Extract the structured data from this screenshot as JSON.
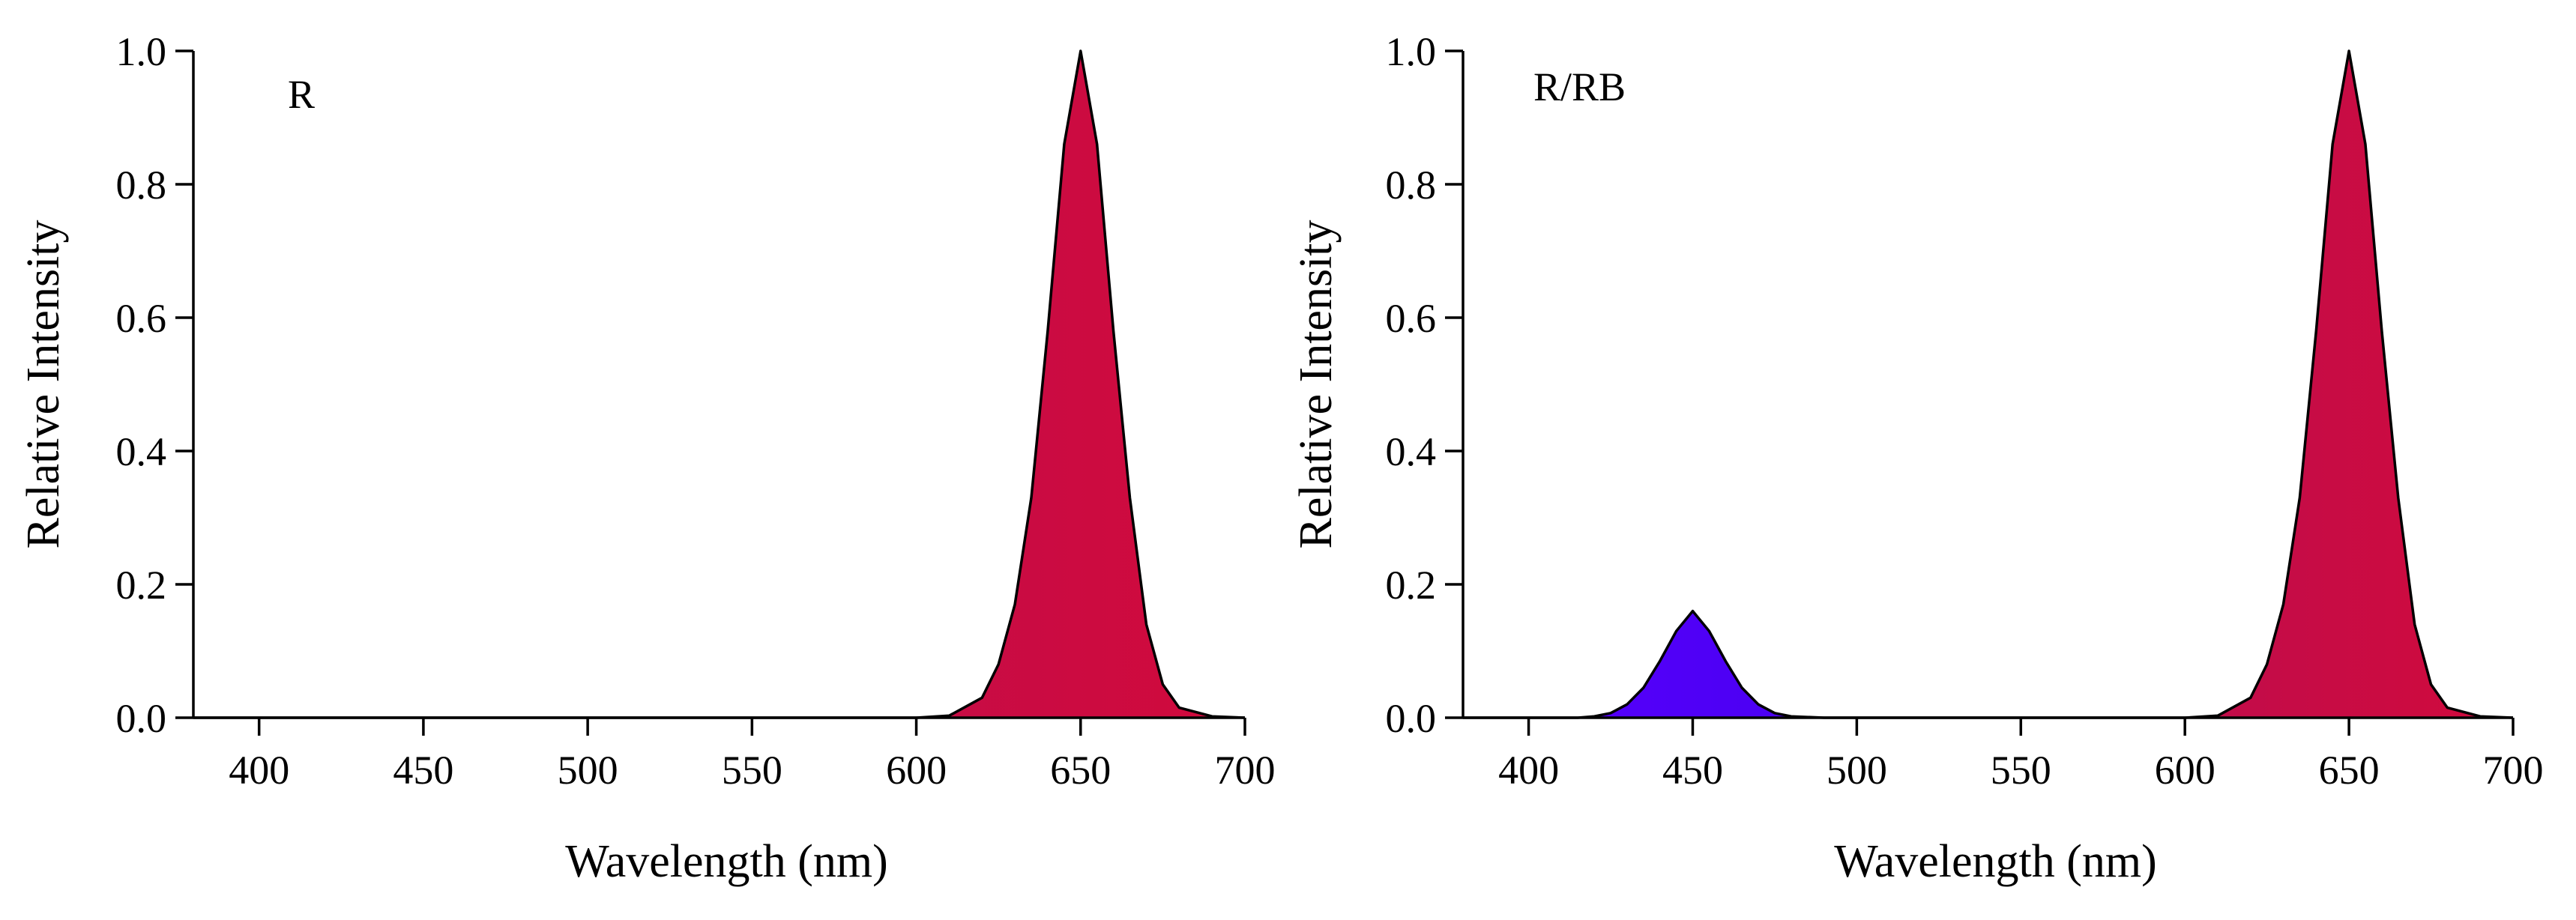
{
  "chart_data": [
    {
      "type": "area",
      "panel_label": "R",
      "xlabel": "Wavelength (nm)",
      "ylabel": "Relative Intensity",
      "xlim": [
        380,
        700
      ],
      "ylim": [
        0,
        1.0
      ],
      "xticks": [
        400,
        450,
        500,
        550,
        600,
        650,
        700
      ],
      "yticks": [
        0.0,
        0.2,
        0.4,
        0.6,
        0.8,
        1.0
      ],
      "xtick_labels": [
        "400",
        "450",
        "500",
        "550",
        "600",
        "650",
        "700"
      ],
      "ytick_labels": [
        "0.0",
        "0.2",
        "0.4",
        "0.6",
        "0.8",
        "1.0"
      ],
      "grid": false,
      "series": [
        {
          "x": [
            380,
            600,
            610,
            620,
            625,
            630,
            635,
            640,
            645,
            650,
            655,
            660,
            665,
            670,
            675,
            680,
            690,
            700
          ],
          "y": [
            0,
            0.0,
            0.003,
            0.03,
            0.08,
            0.17,
            0.33,
            0.58,
            0.86,
            1.0,
            0.86,
            0.58,
            0.33,
            0.14,
            0.05,
            0.015,
            0.002,
            0.0
          ],
          "color_start": "#b0105a",
          "color_end": "#d10a3c"
        }
      ]
    },
    {
      "type": "area",
      "panel_label": "R/RB",
      "xlabel": "Wavelength (nm)",
      "ylabel": "Relative Intensity",
      "xlim": [
        380,
        700
      ],
      "ylim": [
        0,
        1.0
      ],
      "xticks": [
        400,
        450,
        500,
        550,
        600,
        650,
        700
      ],
      "yticks": [
        0.0,
        0.2,
        0.4,
        0.6,
        0.8,
        1.0
      ],
      "xtick_labels": [
        "400",
        "450",
        "500",
        "550",
        "600",
        "650",
        "700"
      ],
      "ytick_labels": [
        "0.0",
        "0.2",
        "0.4",
        "0.6",
        "0.8",
        "1.0"
      ],
      "grid": false,
      "series": [
        {
          "x": [
            380,
            415,
            420,
            425,
            430,
            435,
            440,
            445,
            450,
            455,
            460,
            465,
            470,
            475,
            480,
            490,
            500
          ],
          "y": [
            0,
            0.0,
            0.002,
            0.007,
            0.02,
            0.045,
            0.085,
            0.13,
            0.16,
            0.13,
            0.085,
            0.045,
            0.02,
            0.007,
            0.002,
            0.0,
            0.0
          ],
          "color_start": "#5a00ff",
          "color_end": "#4800f0"
        },
        {
          "x": [
            500,
            600,
            610,
            620,
            625,
            630,
            635,
            640,
            645,
            650,
            655,
            660,
            665,
            670,
            675,
            680,
            690,
            700
          ],
          "y": [
            0,
            0.0,
            0.003,
            0.03,
            0.08,
            0.17,
            0.33,
            0.58,
            0.86,
            1.0,
            0.86,
            0.58,
            0.33,
            0.14,
            0.05,
            0.015,
            0.002,
            0.0
          ],
          "color_start": "#b0105a",
          "color_end": "#d10a3c"
        }
      ]
    }
  ]
}
